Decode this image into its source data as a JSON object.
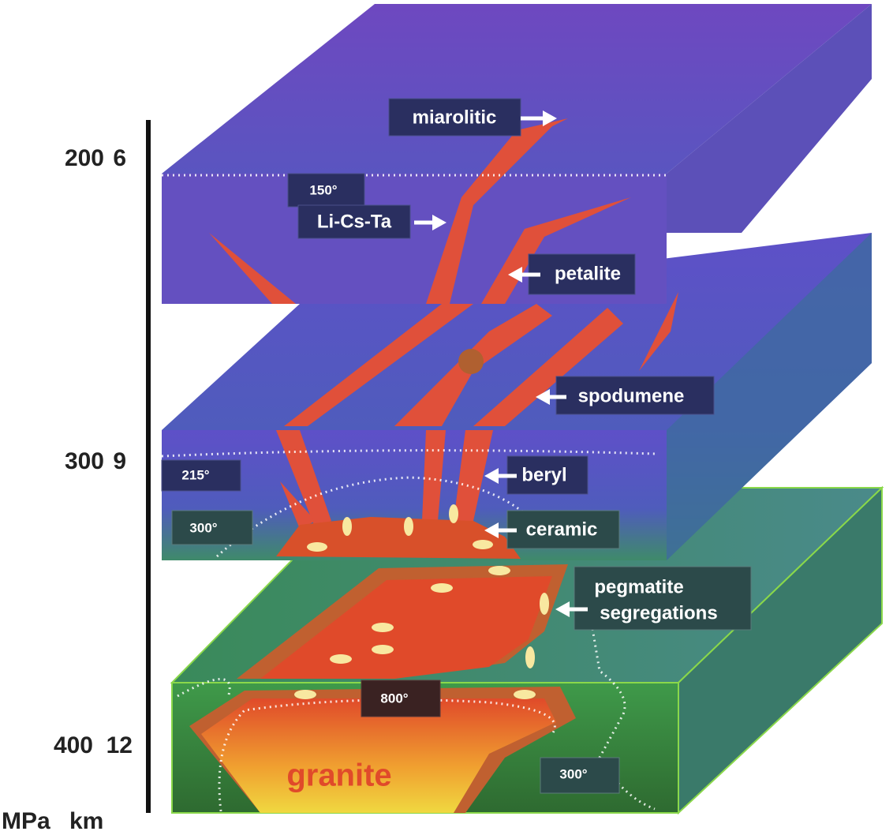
{
  "scale": {
    "rows": [
      {
        "pressure": "200",
        "depth": "6"
      },
      {
        "pressure": "300",
        "depth": "9"
      },
      {
        "pressure": "400",
        "depth": "12"
      }
    ],
    "pressure_unit": "MPa",
    "depth_unit": "km"
  },
  "labels": {
    "miarolitic": "miarolitic",
    "temp_150": "150°",
    "li_cs_ta": "Li-Cs-Ta",
    "petalite": "petalite",
    "spodumene": "spodumene",
    "temp_215": "215°",
    "beryl": "beryl",
    "temp_300_upper": "300°",
    "ceramic": "ceramic",
    "pegmatite_segregations": [
      "pegmatite",
      "segregations"
    ],
    "temp_800": "800°",
    "granite": "granite",
    "temp_300_lower": "300°"
  }
}
